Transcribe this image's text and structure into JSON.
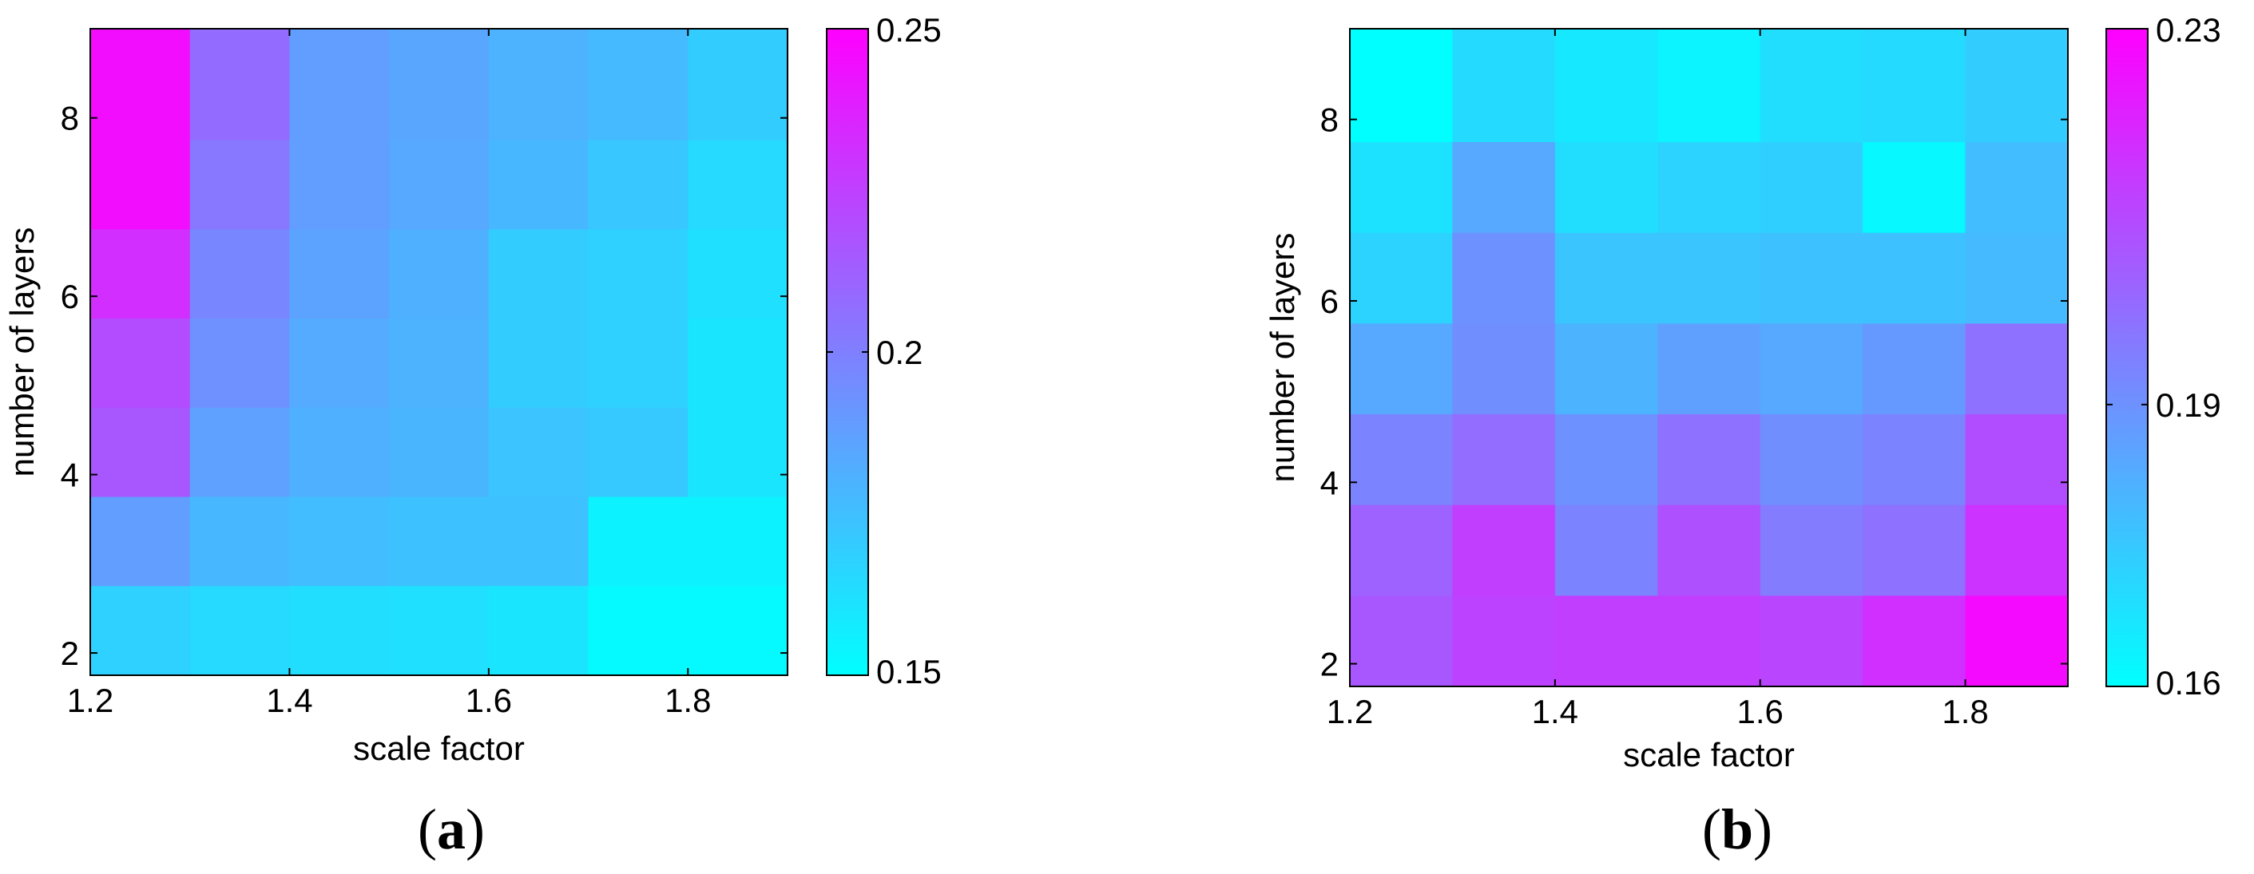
{
  "chart_data": [
    {
      "type": "heatmap",
      "panel_label": {
        "open": "(",
        "letter": "a",
        "close": ")"
      },
      "xlabel": "scale factor",
      "ylabel": "number of layers",
      "xlim": [
        1.2,
        1.9
      ],
      "ylim": [
        1.75,
        9.0
      ],
      "x_ticks": [
        1.2,
        1.4,
        1.6,
        1.8
      ],
      "x_tick_labels": [
        "1.2",
        "1.4",
        "1.6",
        "1.8"
      ],
      "y_ticks": [
        2,
        4,
        6,
        8
      ],
      "y_tick_labels": [
        "2",
        "4",
        "6",
        "8"
      ],
      "x_edges": [
        1.2,
        1.3,
        1.4,
        1.5,
        1.6,
        1.7,
        1.8,
        1.9
      ],
      "y_edges": [
        1.75,
        2.75,
        3.75,
        4.75,
        5.75,
        6.75,
        7.75,
        9.0
      ],
      "color_range": [
        0.15,
        0.25
      ],
      "colorbar_ticks": [
        0.15,
        0.2,
        0.25
      ],
      "colorbar_tick_labels": [
        "0.15",
        "0.2",
        "0.25"
      ],
      "colormap": [
        "#00ffff",
        "#ff00ff"
      ],
      "values_top_to_bottom": [
        [
          0.245,
          0.208,
          0.188,
          0.185,
          0.18,
          0.177,
          0.17
        ],
        [
          0.245,
          0.203,
          0.188,
          0.184,
          0.178,
          0.172,
          0.165
        ],
        [
          0.232,
          0.197,
          0.186,
          0.181,
          0.17,
          0.168,
          0.162
        ],
        [
          0.22,
          0.193,
          0.183,
          0.18,
          0.17,
          0.168,
          0.16
        ],
        [
          0.216,
          0.187,
          0.181,
          0.179,
          0.173,
          0.171,
          0.16
        ],
        [
          0.188,
          0.178,
          0.176,
          0.174,
          0.174,
          0.155,
          0.155
        ],
        [
          0.168,
          0.165,
          0.163,
          0.162,
          0.16,
          0.152,
          0.152
        ]
      ]
    },
    {
      "type": "heatmap",
      "panel_label": {
        "open": "(",
        "letter": "b",
        "close": ")"
      },
      "xlabel": "scale factor",
      "ylabel": "number of layers",
      "xlim": [
        1.2,
        1.9
      ],
      "ylim": [
        1.75,
        9.0
      ],
      "x_ticks": [
        1.2,
        1.4,
        1.6,
        1.8
      ],
      "x_tick_labels": [
        "1.2",
        "1.4",
        "1.6",
        "1.8"
      ],
      "y_ticks": [
        2,
        4,
        6,
        8
      ],
      "y_tick_labels": [
        "2",
        "4",
        "6",
        "8"
      ],
      "x_edges": [
        1.2,
        1.3,
        1.4,
        1.5,
        1.6,
        1.7,
        1.8,
        1.9
      ],
      "y_edges": [
        1.75,
        2.75,
        3.75,
        4.75,
        5.75,
        6.75,
        7.75,
        9.0
      ],
      "color_range": [
        0.16,
        0.23
      ],
      "colorbar_ticks": [
        0.16,
        0.19,
        0.23
      ],
      "colorbar_tick_labels": [
        "0.16",
        "0.19",
        "0.23"
      ],
      "colormap": [
        "#00ffff",
        "#ff00ff"
      ],
      "values_top_to_bottom": [
        [
          0.16,
          0.17,
          0.166,
          0.163,
          0.169,
          0.17,
          0.174
        ],
        [
          0.168,
          0.184,
          0.169,
          0.172,
          0.173,
          0.162,
          0.178
        ],
        [
          0.172,
          0.19,
          0.176,
          0.176,
          0.177,
          0.177,
          0.179
        ],
        [
          0.184,
          0.191,
          0.181,
          0.186,
          0.184,
          0.188,
          0.199
        ],
        [
          0.194,
          0.2,
          0.19,
          0.199,
          0.191,
          0.194,
          0.209
        ],
        [
          0.203,
          0.213,
          0.194,
          0.208,
          0.196,
          0.199,
          0.216
        ],
        [
          0.206,
          0.212,
          0.213,
          0.213,
          0.211,
          0.217,
          0.227
        ]
      ]
    }
  ]
}
